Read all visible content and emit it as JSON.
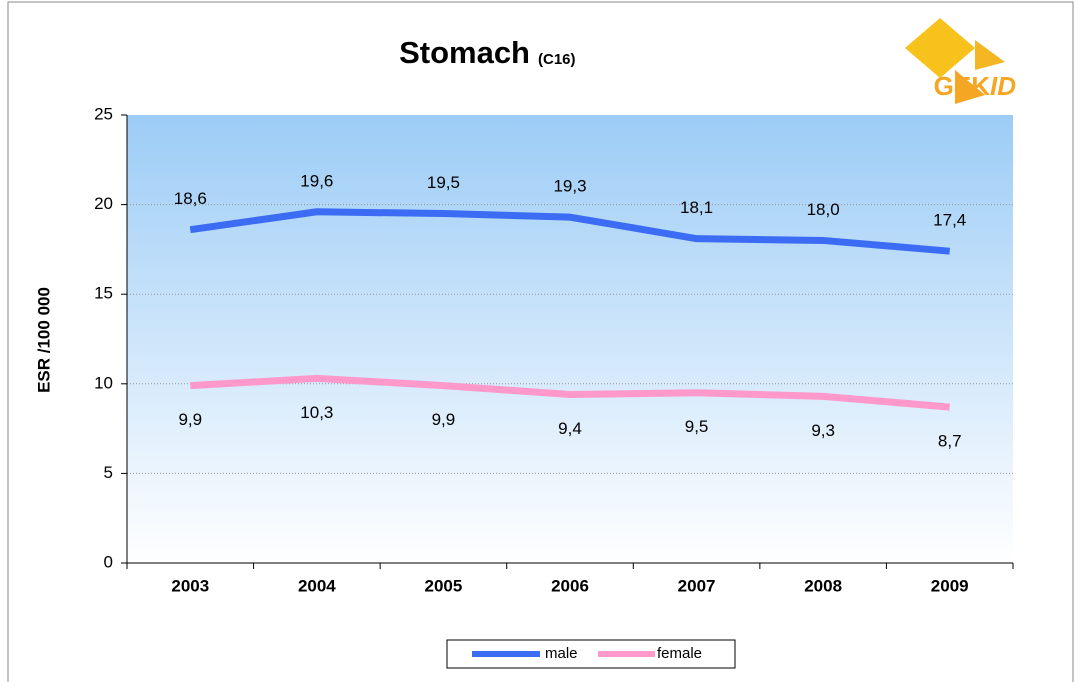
{
  "chart_data": {
    "type": "line",
    "title": "Stomach",
    "subtitle": "(C16)",
    "logo": [
      "GEK",
      "ID"
    ],
    "y_label": "ESR /100 000",
    "categories": [
      "2003",
      "2004",
      "2005",
      "2006",
      "2007",
      "2008",
      "2009"
    ],
    "series": [
      {
        "name": "male",
        "color": "#3b6cf3",
        "values": [
          18.6,
          19.6,
          19.5,
          19.3,
          18.1,
          18.0,
          17.4
        ],
        "value_labels": [
          "18,6",
          "19,6",
          "19,5",
          "19,3",
          "18,1",
          "18,0",
          "17,4"
        ]
      },
      {
        "name": "female",
        "color": "#ff99cc",
        "values": [
          9.9,
          10.3,
          9.9,
          9.4,
          9.5,
          9.3,
          8.7
        ],
        "value_labels": [
          "9,9",
          "10,3",
          "9,9",
          "9,4",
          "9,5",
          "9,3",
          "8,7"
        ]
      }
    ],
    "ylim": [
      0,
      25
    ],
    "yticks": [
      0,
      5,
      10,
      15,
      20,
      25
    ],
    "grid": true,
    "legend": "bottom"
  }
}
